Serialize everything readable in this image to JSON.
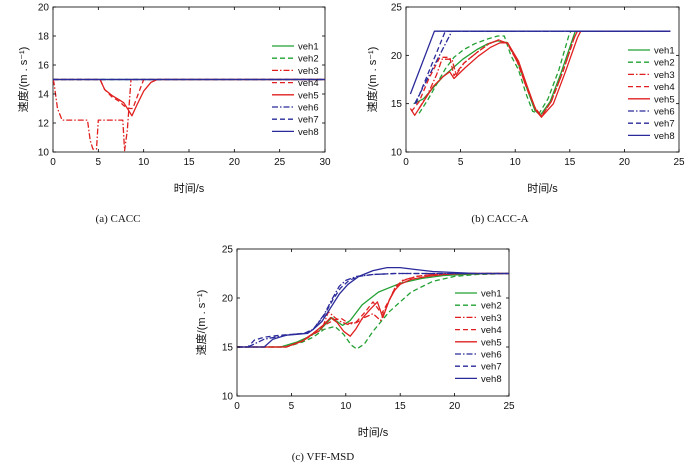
{
  "figure": {
    "captions": [
      "(a)  CACC",
      "(b)  CACC-A",
      "(c)  VFF-MSD"
    ]
  },
  "chart_data": [
    {
      "type": "line",
      "caption": "(a)  CACC",
      "xlabel": "时间/s",
      "ylabel": "速度/(m . s⁻¹)",
      "xlim": [
        0,
        30
      ],
      "ylim": [
        10,
        20
      ],
      "xticks": [
        0,
        5,
        10,
        15,
        20,
        25,
        30
      ],
      "yticks": [
        10,
        12,
        14,
        16,
        18,
        20
      ],
      "grid": false,
      "legend_position": "right",
      "series": [
        {
          "name": "veh1",
          "color": "#22a033",
          "dash": "solid",
          "x": [
            0,
            30
          ],
          "y": [
            15,
            15
          ]
        },
        {
          "name": "veh2",
          "color": "#22a033",
          "dash": "dashed",
          "x": [
            0,
            30
          ],
          "y": [
            15,
            15
          ]
        },
        {
          "name": "veh3",
          "color": "#e02020",
          "dash": "dashdot",
          "x": [
            0,
            0.1,
            0.5,
            1.0,
            3.8,
            4.1,
            4.4,
            4.8,
            5.0,
            7.7,
            7.9,
            8.2,
            8.6,
            30
          ],
          "y": [
            15,
            14.8,
            13.0,
            12.2,
            12.2,
            10.8,
            10.2,
            10.2,
            12.2,
            12.2,
            10.1,
            11.5,
            15.0,
            15.0
          ]
        },
        {
          "name": "veh4",
          "color": "#e02020",
          "dash": "dashed",
          "x": [
            0,
            5.2,
            5.7,
            6.5,
            7.3,
            7.8,
            8.3,
            8.8,
            9.4,
            10.0,
            30
          ],
          "y": [
            15,
            15,
            14.3,
            13.8,
            13.5,
            13.2,
            13.0,
            13.0,
            14.0,
            15.0,
            15.0
          ]
        },
        {
          "name": "veh5",
          "color": "#e02020",
          "dash": "solid",
          "x": [
            0,
            5.2,
            5.7,
            6.5,
            7.3,
            7.8,
            8.3,
            8.7,
            9.3,
            10.0,
            10.8,
            11.5,
            30
          ],
          "y": [
            15,
            15,
            14.3,
            13.9,
            13.6,
            13.4,
            12.9,
            12.5,
            13.3,
            14.2,
            14.8,
            15.0,
            15.0
          ]
        },
        {
          "name": "veh6",
          "color": "#2a2a9a",
          "dash": "dashdot",
          "x": [
            0,
            30
          ],
          "y": [
            15,
            15
          ]
        },
        {
          "name": "veh7",
          "color": "#2a2a9a",
          "dash": "dashed",
          "x": [
            0,
            30
          ],
          "y": [
            15,
            15
          ]
        },
        {
          "name": "veh8",
          "color": "#2a2a9a",
          "dash": "solid",
          "x": [
            0,
            30
          ],
          "y": [
            15,
            15
          ]
        }
      ]
    },
    {
      "type": "line",
      "caption": "(b)  CACC-A",
      "xlabel": "时间/s",
      "ylabel": "速度/(m . s⁻¹)",
      "xlim": [
        0,
        25
      ],
      "ylim": [
        10,
        25
      ],
      "xticks": [
        0,
        5,
        10,
        15,
        20,
        25
      ],
      "yticks": [
        10,
        15,
        20,
        25
      ],
      "grid": false,
      "legend_position": "right",
      "series": [
        {
          "name": "veh1",
          "color": "#22a033",
          "dash": "solid",
          "x": [
            0.7,
            1.6,
            2.6,
            3.4,
            4.2,
            5.2,
            6.5,
            7.5,
            8.4,
            9.3,
            10.2,
            11.0,
            11.8,
            12.3,
            13.2,
            14.2,
            15.2,
            15.5,
            24.2
          ],
          "y": [
            15.0,
            15.5,
            16.8,
            17.8,
            18.6,
            19.6,
            20.6,
            21.2,
            21.5,
            21.3,
            19.4,
            16.8,
            14.3,
            13.8,
            15.2,
            18.2,
            21.5,
            22.5,
            22.5
          ]
        },
        {
          "name": "veh2",
          "color": "#22a033",
          "dash": "dashed",
          "x": [
            1.2,
            2.0,
            2.9,
            3.6,
            4.4,
            5.3,
            6.3,
            7.5,
            8.4,
            9.0,
            9.6,
            10.3,
            11.0,
            11.6,
            12.2,
            13.0,
            14.0,
            14.9,
            15.1,
            24.2
          ],
          "y": [
            14.0,
            15.4,
            17.2,
            18.6,
            19.8,
            20.6,
            21.2,
            21.7,
            22.0,
            22.0,
            20.0,
            18.5,
            16.0,
            14.2,
            14.0,
            15.5,
            18.5,
            22.0,
            22.5,
            22.5
          ]
        },
        {
          "name": "veh3",
          "color": "#e02020",
          "dash": "dashdot",
          "x": [
            1.2,
            2.0,
            2.8,
            3.3,
            4.2,
            4.6,
            5.3,
            6.5,
            7.6,
            8.5,
            9.3,
            10.2,
            11.0,
            11.8,
            12.4,
            13.3,
            14.4,
            15.4,
            15.7,
            24.2
          ],
          "y": [
            14.5,
            16.0,
            18.0,
            19.6,
            19.6,
            18.0,
            19.2,
            20.3,
            21.2,
            21.6,
            21.2,
            19.3,
            16.8,
            14.6,
            13.7,
            15.2,
            18.4,
            21.8,
            22.5,
            22.5
          ]
        },
        {
          "name": "veh4",
          "color": "#e02020",
          "dash": "dashed",
          "x": [
            0.5,
            1.2,
            2.1,
            3.1,
            4.0,
            4.4,
            5.3,
            6.5,
            7.6,
            8.5,
            9.3,
            10.2,
            11.0,
            11.8,
            12.4,
            13.3,
            14.4,
            15.4,
            15.7,
            24.2
          ],
          "y": [
            14.2,
            15.2,
            17.6,
            19.8,
            19.8,
            17.9,
            19.2,
            20.3,
            21.2,
            21.6,
            21.2,
            19.3,
            16.8,
            14.6,
            13.7,
            15.2,
            18.4,
            21.8,
            22.5,
            22.5
          ]
        },
        {
          "name": "veh5",
          "color": "#e02020",
          "dash": "solid",
          "x": [
            0.4,
            0.8,
            1.6,
            2.5,
            3.4,
            4.0,
            4.4,
            5.4,
            6.6,
            7.7,
            8.6,
            9.3,
            10.3,
            11.1,
            11.9,
            12.4,
            13.5,
            14.6,
            15.7,
            16.0,
            24.2
          ],
          "y": [
            14.5,
            13.8,
            15.2,
            16.8,
            17.8,
            18.3,
            17.6,
            18.7,
            19.9,
            20.8,
            21.3,
            21.3,
            19.4,
            16.8,
            14.3,
            13.6,
            15.0,
            18.3,
            21.8,
            22.5,
            22.5
          ]
        },
        {
          "name": "veh6",
          "color": "#2a2a9a",
          "dash": "dashdot",
          "x": [
            0.8,
            4.2,
            24.2
          ],
          "y": [
            15.0,
            22.5,
            22.5
          ]
        },
        {
          "name": "veh7",
          "color": "#2a2a9a",
          "dash": "dashed",
          "x": [
            0.9,
            3.6,
            24.2
          ],
          "y": [
            15.0,
            22.5,
            22.5
          ]
        },
        {
          "name": "veh8",
          "color": "#2a2a9a",
          "dash": "solid",
          "x": [
            0.4,
            2.6,
            24.2
          ],
          "y": [
            16.0,
            22.5,
            22.5
          ]
        }
      ]
    },
    {
      "type": "line",
      "caption": "(c)  VFF-MSD",
      "xlabel": "时间/s",
      "ylabel": "速度/(m . s⁻¹)",
      "xlim": [
        0,
        25
      ],
      "ylim": [
        10,
        25
      ],
      "xticks": [
        0,
        5,
        10,
        15,
        20,
        25
      ],
      "yticks": [
        10,
        15,
        20,
        25
      ],
      "grid": false,
      "legend_position": "right",
      "series": [
        {
          "name": "veh1",
          "color": "#22a033",
          "dash": "solid",
          "x": [
            0,
            4.0,
            5.5,
            6.5,
            7.5,
            8.2,
            8.7,
            9.2,
            9.7,
            10.4,
            11.5,
            13.0,
            15.0,
            17.0,
            19.0,
            21.0,
            23.0,
            25.0
          ],
          "y": [
            15.0,
            15.0,
            15.5,
            16.0,
            16.6,
            17.4,
            18.0,
            17.6,
            17.2,
            17.7,
            19.3,
            20.6,
            21.5,
            22.0,
            22.3,
            22.4,
            22.5,
            22.5
          ]
        },
        {
          "name": "veh2",
          "color": "#22a033",
          "dash": "dashed",
          "x": [
            0,
            4.5,
            6.0,
            7.0,
            8.0,
            9.0,
            9.8,
            10.5,
            11.0,
            11.7,
            12.5,
            14.0,
            16.0,
            18.0,
            20.0,
            22.0,
            25.0
          ],
          "y": [
            15.0,
            15.0,
            15.5,
            16.0,
            16.8,
            17.1,
            16.3,
            15.2,
            14.8,
            15.3,
            16.6,
            18.6,
            20.6,
            21.7,
            22.2,
            22.4,
            22.5
          ]
        },
        {
          "name": "veh3",
          "color": "#e02020",
          "dash": "dashdot",
          "x": [
            0,
            4.5,
            6.0,
            7.0,
            7.8,
            8.4,
            9.0,
            9.5,
            10.2,
            11.0,
            11.7,
            12.5,
            13.2,
            13.9,
            14.5,
            15.2,
            16.5,
            18.0,
            20.0,
            22.0,
            25.0
          ],
          "y": [
            15.0,
            15.0,
            15.6,
            16.3,
            16.8,
            18.6,
            18.0,
            17.6,
            17.3,
            17.5,
            18.0,
            18.4,
            17.7,
            19.5,
            21.0,
            21.8,
            22.2,
            22.4,
            22.5,
            22.5,
            22.5
          ]
        },
        {
          "name": "veh4",
          "color": "#e02020",
          "dash": "dashed",
          "x": [
            0,
            4.5,
            6.0,
            7.0,
            8.0,
            9.0,
            9.6,
            10.3,
            11.0,
            11.8,
            12.5,
            13.3,
            14.0,
            14.6,
            15.3,
            16.5,
            18.0,
            20.0,
            22.0,
            25.0
          ],
          "y": [
            15.0,
            15.0,
            15.6,
            16.4,
            17.2,
            17.8,
            17.9,
            17.4,
            17.6,
            18.6,
            19.6,
            18.4,
            19.8,
            21.2,
            21.8,
            22.2,
            22.4,
            22.5,
            22.5,
            22.5
          ]
        },
        {
          "name": "veh5",
          "color": "#e02020",
          "dash": "solid",
          "x": [
            0,
            4.5,
            6.0,
            7.0,
            8.0,
            8.6,
            9.2,
            9.8,
            10.4,
            10.9,
            11.5,
            12.2,
            12.9,
            13.4,
            14.0,
            14.5,
            15.0,
            16.0,
            17.5,
            19.0,
            21.0,
            23.0,
            25.0
          ],
          "y": [
            15.0,
            15.0,
            15.6,
            16.4,
            17.3,
            18.0,
            17.5,
            16.6,
            16.1,
            16.8,
            17.9,
            18.8,
            19.6,
            18.0,
            19.8,
            20.8,
            21.4,
            21.9,
            22.2,
            22.4,
            22.5,
            22.5,
            22.5
          ]
        },
        {
          "name": "veh6",
          "color": "#2a2a9a",
          "dash": "dashdot",
          "x": [
            0,
            1.0,
            2.5,
            4.0,
            5.2,
            6.2,
            7.0,
            8.0,
            8.8,
            9.4,
            10.0,
            11.0,
            12.5,
            14.5,
            17.0,
            20.0,
            25.0
          ],
          "y": [
            15.0,
            15.0,
            15.8,
            16.1,
            16.3,
            16.4,
            16.8,
            18.3,
            20.0,
            21.2,
            21.8,
            22.2,
            22.4,
            22.5,
            22.5,
            22.5,
            22.5
          ]
        },
        {
          "name": "veh7",
          "color": "#2a2a9a",
          "dash": "dashed",
          "x": [
            0,
            1.0,
            1.6,
            2.5,
            4.0,
            5.2,
            6.2,
            7.0,
            8.0,
            8.8,
            9.5,
            10.3,
            11.2,
            12.5,
            14.5,
            17.0,
            20.0,
            25.0
          ],
          "y": [
            15.0,
            15.0,
            15.7,
            16.0,
            16.2,
            16.3,
            16.4,
            16.8,
            18.2,
            19.8,
            21.0,
            21.8,
            22.2,
            22.4,
            22.5,
            22.5,
            22.5,
            22.5
          ]
        },
        {
          "name": "veh8",
          "color": "#2a2a9a",
          "dash": "solid",
          "x": [
            0,
            2.5,
            3.3,
            4.5,
            5.5,
            6.5,
            7.0,
            7.8,
            8.6,
            9.4,
            10.2,
            11.2,
            12.5,
            13.8,
            15.0,
            16.5,
            18.0,
            20.0,
            22.0,
            25.0
          ],
          "y": [
            15.0,
            15.0,
            15.8,
            16.2,
            16.3,
            16.4,
            16.8,
            17.6,
            19.0,
            20.4,
            21.4,
            22.2,
            22.8,
            23.1,
            23.1,
            22.9,
            22.7,
            22.6,
            22.5,
            22.5
          ]
        }
      ]
    }
  ]
}
